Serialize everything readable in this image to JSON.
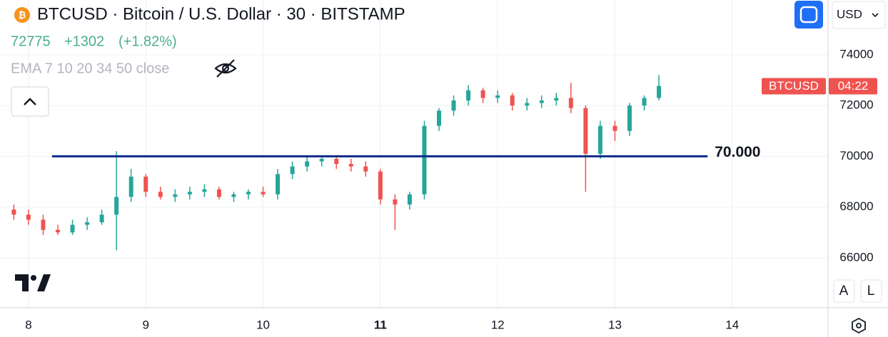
{
  "chart_data": {
    "type": "candlestick",
    "title": "BTCUSD · Bitcoin / U.S. Dollar · 30 · BITSTAMP",
    "last": 72775,
    "change": "+1302",
    "change_pct": "(+1.82%)",
    "indicator": "EMA 7 10 20 34 50 close",
    "currency": "USD",
    "symbol": "BTCUSD",
    "countdown": "04:22",
    "scale_buttons": [
      "A",
      "L"
    ],
    "up_color": "#26a69a",
    "down_color": "#ef5350",
    "x": [
      7.875,
      8.0,
      8.125,
      8.25,
      8.375,
      8.5,
      8.625,
      8.75,
      8.875,
      9.0,
      9.125,
      9.25,
      9.375,
      9.5,
      9.625,
      9.75,
      9.875,
      10.0,
      10.125,
      10.25,
      10.375,
      10.5,
      10.625,
      10.75,
      10.875,
      11.0,
      11.125,
      11.25,
      11.375,
      11.5,
      11.625,
      11.75,
      11.875,
      12.0,
      12.125,
      12.25,
      12.375,
      12.5,
      12.625,
      12.75,
      12.875,
      13.0,
      13.125,
      13.25,
      13.375
    ],
    "open": [
      67900,
      67700,
      67500,
      67100,
      67000,
      67300,
      67400,
      67700,
      68400,
      69200,
      68600,
      68400,
      68500,
      68600,
      68700,
      68400,
      68500,
      68600,
      68500,
      69300,
      69600,
      69800,
      69900,
      69700,
      69600,
      69400,
      68300,
      68100,
      68500,
      71200,
      71800,
      72200,
      72600,
      72300,
      72400,
      72000,
      72100,
      72200,
      72300,
      71900,
      70100,
      71200,
      71000,
      72000,
      72300
    ],
    "high": [
      68100,
      67900,
      67700,
      67300,
      67500,
      67600,
      67900,
      70200,
      69500,
      69300,
      68800,
      68700,
      68800,
      68900,
      68800,
      68600,
      68700,
      68800,
      69500,
      69800,
      70000,
      70000,
      70000,
      69900,
      69800,
      69500,
      68500,
      68600,
      71400,
      71900,
      72400,
      72800,
      72700,
      72600,
      72500,
      72300,
      72400,
      72500,
      72900,
      72000,
      71400,
      71400,
      72100,
      72400,
      73200
    ],
    "low": [
      67500,
      67300,
      66900,
      66900,
      66900,
      67100,
      67300,
      66300,
      68200,
      68400,
      68300,
      68200,
      68300,
      68400,
      68300,
      68200,
      68300,
      68400,
      68300,
      69100,
      69400,
      69600,
      69500,
      69400,
      69200,
      68100,
      67100,
      67900,
      68300,
      71000,
      71600,
      72000,
      72100,
      72100,
      71800,
      71800,
      71900,
      72000,
      71700,
      68600,
      69900,
      70600,
      70800,
      71800,
      72200
    ],
    "close": [
      67700,
      67500,
      67100,
      67000,
      67300,
      67400,
      67700,
      68400,
      69200,
      68600,
      68400,
      68500,
      68600,
      68700,
      68400,
      68500,
      68600,
      68500,
      69300,
      69600,
      69800,
      69900,
      69700,
      69600,
      69400,
      68300,
      68100,
      68500,
      71200,
      71800,
      72200,
      72600,
      72300,
      72400,
      72000,
      72100,
      72200,
      72300,
      71900,
      70100,
      71200,
      71000,
      72000,
      72300,
      72775
    ],
    "level": {
      "value": 70000,
      "x": [
        8.2,
        13.79
      ],
      "label": "70.000",
      "color": "#0d2a8a"
    },
    "xlim": [
      7.757,
      14.817
    ],
    "xticks": [
      8,
      9,
      10,
      11,
      12,
      13,
      14
    ],
    "highlight_xtick": 11,
    "ylim": [
      64030,
      76160
    ],
    "yticks": [
      66000,
      68000,
      70000,
      72000,
      74000
    ],
    "grid": true
  }
}
